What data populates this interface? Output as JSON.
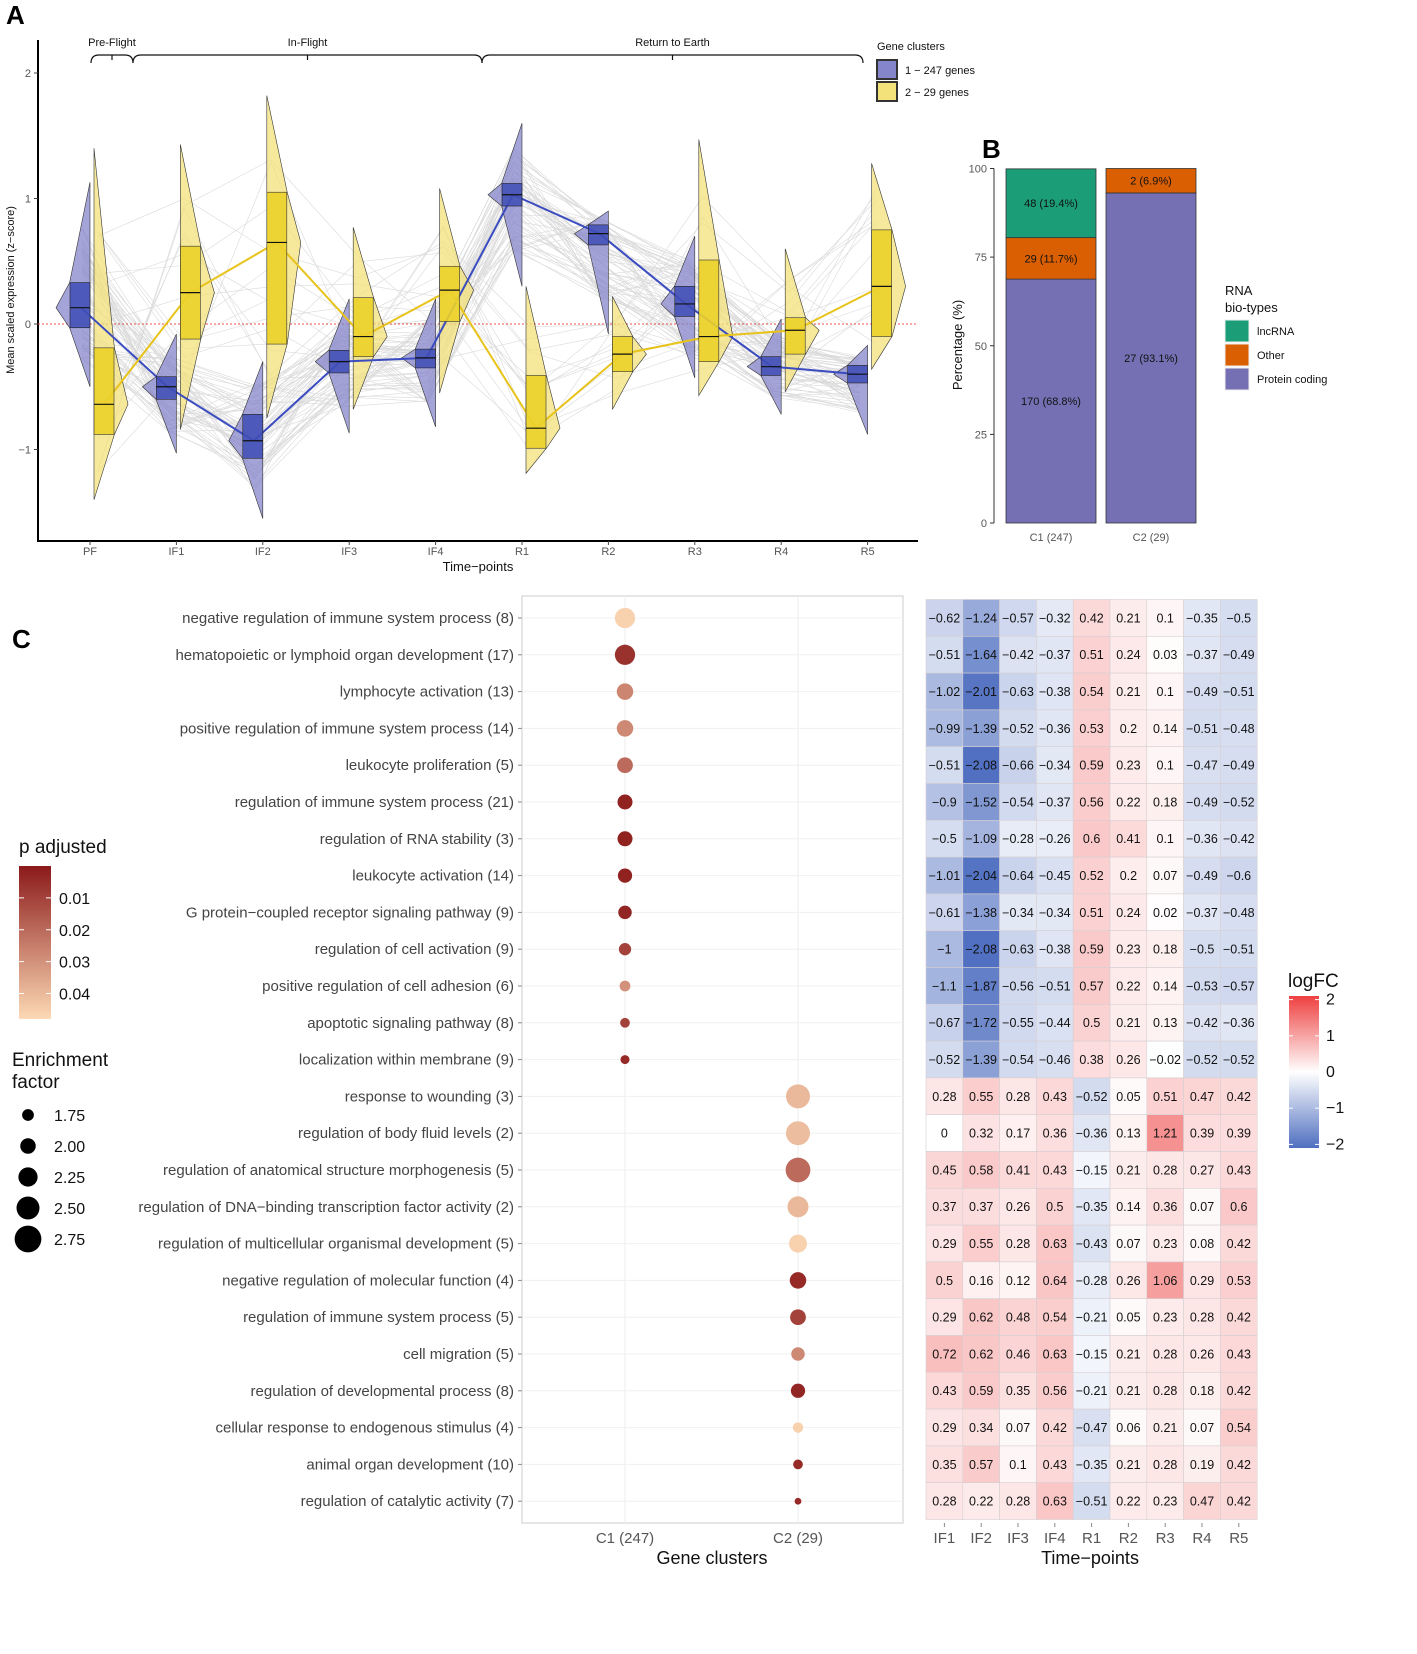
{
  "chart_data": [
    {
      "panel": "A",
      "type": "violin-box-line",
      "title": "",
      "xlabel": "Time-points",
      "ylabel": "Mean scaled expression (z-score)",
      "categories": [
        "PF",
        "IF1",
        "IF2",
        "IF3",
        "IF4",
        "R1",
        "R2",
        "R3",
        "R4",
        "R5"
      ],
      "yticks": [
        -1,
        0,
        1,
        2
      ],
      "ylim": [
        -1.75,
        2.2
      ],
      "reference_line": 0,
      "phases": [
        {
          "label": "Pre-Flight",
          "from": "PF",
          "to": "IF1"
        },
        {
          "label": "In-Flight",
          "from": "IF1",
          "to": "R1"
        },
        {
          "label": "Return to Earth",
          "from": "R1",
          "to": "R5"
        }
      ],
      "legend": {
        "title": "Gene clusters",
        "position": "top-right"
      },
      "series": [
        {
          "name": "1 - 247 genes",
          "color": "#3b4cc0",
          "fill": "#8585cc",
          "median": [
            0.13,
            -0.5,
            -0.93,
            -0.3,
            -0.27,
            1.03,
            0.72,
            0.16,
            -0.34,
            -0.4
          ],
          "q1": [
            -0.03,
            -0.6,
            -1.07,
            -0.39,
            -0.35,
            0.94,
            0.63,
            0.06,
            -0.41,
            -0.47
          ],
          "q3": [
            0.33,
            -0.42,
            -0.72,
            -0.21,
            -0.2,
            1.12,
            0.79,
            0.3,
            -0.26,
            -0.33
          ],
          "min": [
            -0.5,
            -1.03,
            -1.55,
            -0.87,
            -0.82,
            0.3,
            -0.08,
            -0.43,
            -0.72,
            -0.88
          ],
          "max": [
            1.13,
            -0.08,
            -0.3,
            0.2,
            0.2,
            1.6,
            0.9,
            0.7,
            0.04,
            -0.17
          ]
        },
        {
          "name": "2 - 29 genes",
          "color": "#e8c31a",
          "fill": "#f3e27a",
          "median": [
            -0.64,
            0.25,
            0.65,
            -0.1,
            0.27,
            -0.83,
            -0.24,
            -0.1,
            -0.05,
            0.3
          ],
          "q1": [
            -0.88,
            -0.12,
            -0.16,
            -0.26,
            0.02,
            -0.99,
            -0.38,
            -0.3,
            -0.24,
            -0.1
          ],
          "q3": [
            -0.19,
            0.62,
            1.05,
            0.21,
            0.46,
            -0.41,
            -0.1,
            0.51,
            0.05,
            0.75
          ],
          "min": [
            -1.4,
            -0.84,
            -0.75,
            -0.68,
            -0.55,
            -1.19,
            -0.68,
            -0.57,
            -0.54,
            -0.36
          ],
          "max": [
            1.4,
            1.43,
            1.82,
            0.77,
            1.08,
            0.3,
            0.22,
            1.47,
            0.6,
            1.28
          ]
        }
      ]
    },
    {
      "panel": "B",
      "type": "bar",
      "stacked": true,
      "title": "",
      "xlabel": "",
      "ylabel": "Percentage (%)",
      "categories": [
        "C1 (247)",
        "C2 (29)"
      ],
      "yticks": [
        0,
        25,
        50,
        75,
        100
      ],
      "ylim": [
        0,
        100
      ],
      "legend": {
        "title": "RNA bio-types",
        "position": "right"
      },
      "series": [
        {
          "name": "Protein coding",
          "color": "#7570b3",
          "values": [
            68.8,
            93.1
          ],
          "labels": [
            "170 (68.8%)",
            "27 (93.1%)"
          ]
        },
        {
          "name": "Other",
          "color": "#d95f02",
          "values": [
            11.7,
            6.9
          ],
          "labels": [
            "29 (11.7%)",
            "2 (6.9%)"
          ]
        },
        {
          "name": "lncRNA",
          "color": "#1b9e77",
          "values": [
            19.4,
            0
          ],
          "labels": [
            "48 (19.4%)",
            ""
          ]
        }
      ]
    },
    {
      "panel": "C",
      "type": "scatter",
      "subtype": "dot-plot",
      "xlabel": "Gene clusters",
      "ylabel": "",
      "categories": [
        "C1 (247)",
        "C2 (29)"
      ],
      "legend_color": {
        "title": "p adjusted",
        "ticks": [
          0.01,
          0.02,
          0.03,
          0.04
        ],
        "range": [
          0.0,
          0.048
        ],
        "low_color": "#8b1a1a",
        "high_color": "#fdd9b5"
      },
      "legend_size": {
        "title": "Enrichment factor",
        "ticks": [
          "1.75",
          "2.00",
          "2.25",
          "2.50",
          "2.75"
        ]
      },
      "terms": [
        {
          "label": "negative regulation of immune system process (8)",
          "cluster": "C1 (247)",
          "padj": 0.046,
          "enrichment": 2.45
        },
        {
          "label": "hematopoietic or lymphoid organ development (17)",
          "cluster": "C1 (247)",
          "padj": 0.006,
          "enrichment": 2.45
        },
        {
          "label": "lymphocyte activation (13)",
          "cluster": "C1 (247)",
          "padj": 0.027,
          "enrichment": 2.2
        },
        {
          "label": "positive regulation of immune system process (14)",
          "cluster": "C1 (247)",
          "padj": 0.028,
          "enrichment": 2.2
        },
        {
          "label": "leukocyte proliferation (5)",
          "cluster": "C1 (247)",
          "padj": 0.02,
          "enrichment": 2.15
        },
        {
          "label": "regulation of immune system process (21)",
          "cluster": "C1 (247)",
          "padj": 0.002,
          "enrichment": 2.1
        },
        {
          "label": "regulation of RNA stability (3)",
          "cluster": "C1 (247)",
          "padj": 0.002,
          "enrichment": 2.1
        },
        {
          "label": "leukocyte activation (14)",
          "cluster": "C1 (247)",
          "padj": 0.002,
          "enrichment": 2.05
        },
        {
          "label": "G protein-coupled receptor signaling pathway (9)",
          "cluster": "C1 (247)",
          "padj": 0.003,
          "enrichment": 2.0
        },
        {
          "label": "regulation of cell activation (9)",
          "cluster": "C1 (247)",
          "padj": 0.01,
          "enrichment": 1.92
        },
        {
          "label": "positive regulation of cell adhesion (6)",
          "cluster": "C1 (247)",
          "padj": 0.03,
          "enrichment": 1.82
        },
        {
          "label": "apoptotic signaling pathway (8)",
          "cluster": "C1 (247)",
          "padj": 0.01,
          "enrichment": 1.75
        },
        {
          "label": "localization within membrane (9)",
          "cluster": "C1 (247)",
          "padj": 0.004,
          "enrichment": 1.7
        },
        {
          "label": "response to wounding (3)",
          "cluster": "C2 (29)",
          "padj": 0.04,
          "enrichment": 2.7
        },
        {
          "label": "regulation of body fluid levels (2)",
          "cluster": "C2 (29)",
          "padj": 0.041,
          "enrichment": 2.7
        },
        {
          "label": "regulation of anatomical structure morphogenesis (5)",
          "cluster": "C2 (29)",
          "padj": 0.02,
          "enrichment": 2.75
        },
        {
          "label": "regulation of DNA-binding transcription factor activity (2)",
          "cluster": "C2 (29)",
          "padj": 0.04,
          "enrichment": 2.5
        },
        {
          "label": "regulation of multicellular organismal development (5)",
          "cluster": "C2 (29)",
          "padj": 0.046,
          "enrichment": 2.3
        },
        {
          "label": "negative regulation of molecular function (4)",
          "cluster": "C2 (29)",
          "padj": 0.004,
          "enrichment": 2.2
        },
        {
          "label": "regulation of immune system process (5)",
          "cluster": "C2 (29)",
          "padj": 0.01,
          "enrichment": 2.15
        },
        {
          "label": "cell migration (5)",
          "cluster": "C2 (29)",
          "padj": 0.028,
          "enrichment": 2.0
        },
        {
          "label": "regulation of developmental process (8)",
          "cluster": "C2 (29)",
          "padj": 0.003,
          "enrichment": 2.05
        },
        {
          "label": "cellular response to endogenous stimulus (4)",
          "cluster": "C2 (29)",
          "padj": 0.046,
          "enrichment": 1.8
        },
        {
          "label": "animal organ development (10)",
          "cluster": "C2 (29)",
          "padj": 0.004,
          "enrichment": 1.75
        },
        {
          "label": "regulation of catalytic activity (7)",
          "cluster": "C2 (29)",
          "padj": 0.004,
          "enrichment": 1.55
        }
      ]
    },
    {
      "panel": "C-heatmap",
      "type": "heatmap",
      "xlabel": "Time-points",
      "ylabel": "",
      "columns": [
        "IF1",
        "IF2",
        "IF3",
        "IF4",
        "R1",
        "R2",
        "R3",
        "R4",
        "R5"
      ],
      "legend": {
        "title": "logFC",
        "ticks": [
          2,
          1,
          0,
          -1,
          -2
        ],
        "range": [
          -2.1,
          2.1
        ],
        "low_color": "#4f6fc0",
        "mid_color": "#ffffff",
        "high_color": "#ee4040"
      },
      "values": [
        [
          -0.62,
          -1.24,
          -0.57,
          -0.32,
          0.42,
          0.21,
          0.1,
          -0.35,
          -0.5
        ],
        [
          -0.51,
          -1.64,
          -0.42,
          -0.37,
          0.51,
          0.24,
          0.03,
          -0.37,
          -0.49
        ],
        [
          -1.02,
          -2.01,
          -0.63,
          -0.38,
          0.54,
          0.21,
          0.1,
          -0.49,
          -0.51
        ],
        [
          -0.99,
          -1.39,
          -0.52,
          -0.36,
          0.53,
          0.2,
          0.14,
          -0.51,
          -0.48
        ],
        [
          -0.51,
          -2.08,
          -0.66,
          -0.34,
          0.59,
          0.23,
          0.1,
          -0.47,
          -0.49
        ],
        [
          -0.9,
          -1.52,
          -0.54,
          -0.37,
          0.56,
          0.22,
          0.18,
          -0.49,
          -0.52
        ],
        [
          -0.5,
          -1.09,
          -0.28,
          -0.26,
          0.6,
          0.41,
          0.1,
          -0.36,
          -0.42
        ],
        [
          -1.01,
          -2.04,
          -0.64,
          -0.45,
          0.52,
          0.2,
          0.07,
          -0.49,
          -0.6
        ],
        [
          -0.61,
          -1.38,
          -0.34,
          -0.34,
          0.51,
          0.24,
          0.02,
          -0.37,
          -0.48
        ],
        [
          -1,
          -2.08,
          -0.63,
          -0.38,
          0.59,
          0.23,
          0.18,
          -0.5,
          -0.51
        ],
        [
          -1.1,
          -1.87,
          -0.56,
          -0.51,
          0.57,
          0.22,
          0.14,
          -0.53,
          -0.57
        ],
        [
          -0.67,
          -1.72,
          -0.55,
          -0.44,
          0.5,
          0.21,
          0.13,
          -0.42,
          -0.36
        ],
        [
          -0.52,
          -1.39,
          -0.54,
          -0.46,
          0.38,
          0.26,
          -0.02,
          -0.52,
          -0.52
        ],
        [
          0.28,
          0.55,
          0.28,
          0.43,
          -0.52,
          0.05,
          0.51,
          0.47,
          0.42
        ],
        [
          0,
          0.32,
          0.17,
          0.36,
          -0.36,
          0.13,
          1.21,
          0.39,
          0.39
        ],
        [
          0.45,
          0.58,
          0.41,
          0.43,
          -0.15,
          0.21,
          0.28,
          0.27,
          0.43
        ],
        [
          0.37,
          0.37,
          0.26,
          0.5,
          -0.35,
          0.14,
          0.36,
          0.07,
          0.6
        ],
        [
          0.29,
          0.55,
          0.28,
          0.63,
          -0.43,
          0.07,
          0.23,
          0.08,
          0.42
        ],
        [
          0.5,
          0.16,
          0.12,
          0.64,
          -0.28,
          0.26,
          1.06,
          0.29,
          0.53
        ],
        [
          0.29,
          0.62,
          0.48,
          0.54,
          -0.21,
          0.05,
          0.23,
          0.28,
          0.42
        ],
        [
          0.72,
          0.62,
          0.46,
          0.63,
          -0.15,
          0.21,
          0.28,
          0.26,
          0.43
        ],
        [
          0.43,
          0.59,
          0.35,
          0.56,
          -0.21,
          0.21,
          0.28,
          0.18,
          0.42
        ],
        [
          0.29,
          0.34,
          0.07,
          0.42,
          -0.47,
          0.06,
          0.21,
          0.07,
          0.54
        ],
        [
          0.35,
          0.57,
          0.1,
          0.43,
          -0.35,
          0.21,
          0.28,
          0.19,
          0.42
        ],
        [
          0.28,
          0.22,
          0.28,
          0.63,
          -0.51,
          0.22,
          0.23,
          0.47,
          0.42
        ]
      ]
    }
  ],
  "panel_letters": {
    "a": "A",
    "b": "B",
    "c": "C"
  }
}
